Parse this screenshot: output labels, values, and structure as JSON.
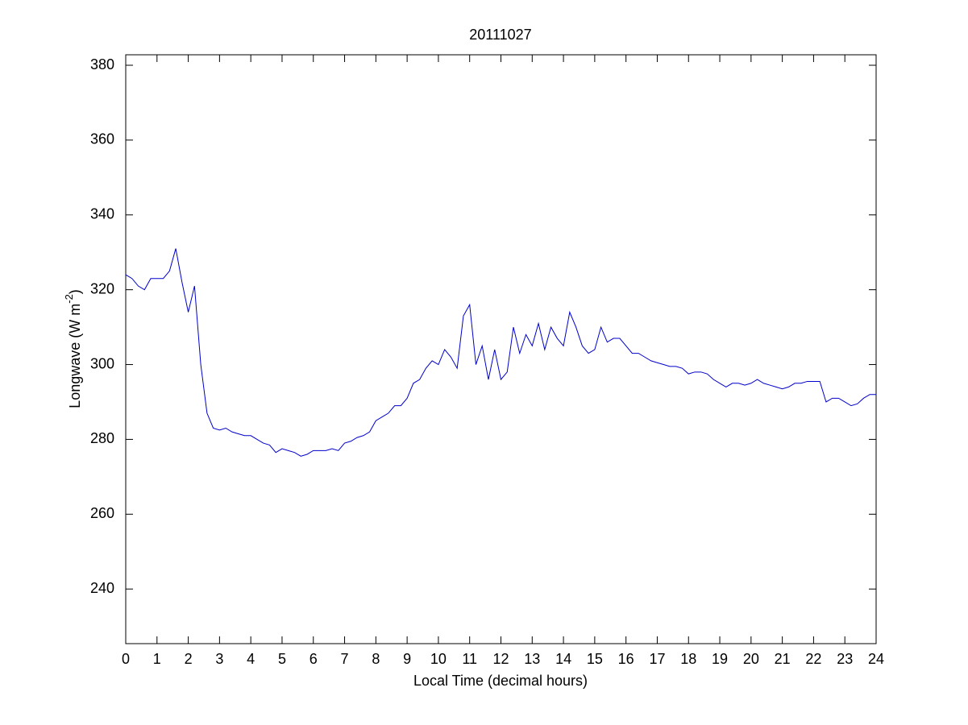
{
  "chart_data": {
    "type": "line",
    "title": "20111027",
    "xlabel": "Local Time (decimal hours)",
    "ylabel_parts": [
      "Longwave (W m",
      "-2",
      ")"
    ],
    "color": "#0000cc",
    "xlim": [
      0,
      24
    ],
    "ylim": [
      225.4,
      382.8
    ],
    "xticks": [
      0,
      1,
      2,
      3,
      4,
      5,
      6,
      7,
      8,
      9,
      10,
      11,
      12,
      13,
      14,
      15,
      16,
      17,
      18,
      19,
      20,
      21,
      22,
      23,
      24
    ],
    "yticks": [
      240,
      260,
      280,
      300,
      320,
      340,
      360,
      380
    ],
    "x": [
      0,
      0.2,
      0.4,
      0.6,
      0.8,
      1,
      1.2,
      1.4,
      1.6,
      1.8,
      2,
      2.2,
      2.4,
      2.6,
      2.8,
      3,
      3.2,
      3.4,
      3.6,
      3.8,
      4,
      4.2,
      4.4,
      4.6,
      4.8,
      5,
      5.2,
      5.4,
      5.6,
      5.8,
      6,
      6.2,
      6.4,
      6.6,
      6.8,
      7,
      7.2,
      7.4,
      7.6,
      7.8,
      8,
      8.2,
      8.4,
      8.6,
      8.8,
      9,
      9.2,
      9.4,
      9.6,
      9.8,
      10,
      10.2,
      10.4,
      10.6,
      10.8,
      11,
      11.2,
      11.4,
      11.6,
      11.8,
      12,
      12.2,
      12.4,
      12.6,
      12.8,
      13,
      13.2,
      13.4,
      13.6,
      13.8,
      14,
      14.2,
      14.4,
      14.6,
      14.8,
      15,
      15.2,
      15.4,
      15.6,
      15.8,
      16,
      16.2,
      16.4,
      16.6,
      16.8,
      17,
      17.2,
      17.4,
      17.6,
      17.8,
      18,
      18.2,
      18.4,
      18.6,
      18.8,
      19,
      19.2,
      19.4,
      19.6,
      19.8,
      20,
      20.2,
      20.4,
      20.6,
      20.8,
      21,
      21.2,
      21.4,
      21.6,
      21.8,
      22,
      22.2,
      22.4,
      22.6,
      22.8,
      23,
      23.2,
      23.4,
      23.6,
      23.8,
      24
    ],
    "values": [
      324,
      323,
      321,
      320,
      323,
      323,
      323,
      325,
      331,
      322,
      314,
      321,
      300,
      287,
      283,
      282.5,
      283,
      282,
      281.5,
      281,
      281,
      280,
      279,
      278.5,
      276.5,
      277.5,
      277,
      276.5,
      275.5,
      276,
      277,
      277,
      277,
      277.5,
      277,
      279,
      279.5,
      280.5,
      281,
      282,
      285,
      286,
      287,
      289,
      289,
      291,
      295,
      296,
      299,
      301,
      300,
      304,
      302,
      299,
      313,
      316,
      300,
      305,
      296,
      304,
      296,
      298,
      310,
      303,
      308,
      305,
      311,
      304,
      310,
      307,
      305,
      314,
      310,
      305,
      303,
      304,
      310,
      306,
      307,
      307,
      305,
      303,
      303,
      302,
      301,
      300.5,
      300,
      299.5,
      299.5,
      299,
      297.5,
      298,
      298,
      297.5,
      296,
      295,
      294,
      295,
      295,
      294.5,
      295,
      296,
      295,
      294.5,
      294,
      293.5,
      294,
      295,
      295,
      295.5,
      295.5,
      295.5,
      290,
      291,
      291,
      290,
      289,
      289.5,
      291,
      292,
      292
    ]
  }
}
